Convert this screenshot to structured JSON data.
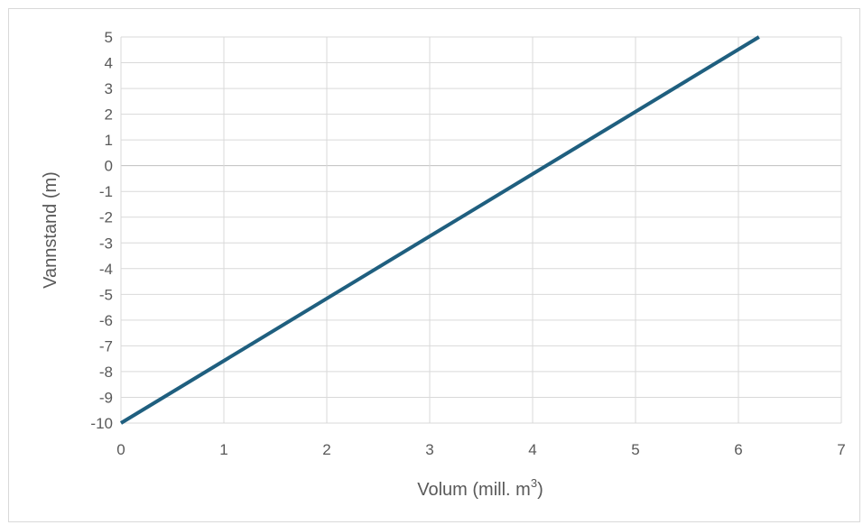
{
  "chart_data": {
    "type": "line",
    "title": "",
    "xlabel": "Volum (mill. m",
    "xlabel_superscript": "3",
    "xlabel_suffix": ")",
    "ylabel": "Vannstand (m)",
    "xlim": [
      0,
      7
    ],
    "ylim": [
      -10,
      5
    ],
    "x_ticks": [
      "0",
      "1",
      "2",
      "3",
      "4",
      "5",
      "6",
      "7"
    ],
    "y_ticks": [
      "5",
      "4",
      "3",
      "2",
      "1",
      "0",
      "-1",
      "-2",
      "-3",
      "-4",
      "-5",
      "-6",
      "-7",
      "-8",
      "-9",
      "-10"
    ],
    "grid": true,
    "legend": "none",
    "series": [
      {
        "color": "#1f5f7f",
        "x": [
          0,
          6.2
        ],
        "y": [
          -10,
          5
        ]
      }
    ]
  }
}
